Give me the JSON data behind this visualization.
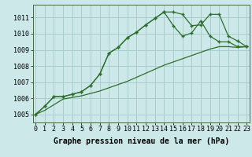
{
  "background_color": "#cce8e8",
  "grid_color": "#aacccc",
  "line_color": "#2d6e2d",
  "xlabel": "Graphe pression niveau de la mer (hPa)",
  "xlabel_fontsize": 7,
  "tick_fontsize": 6,
  "ylim": [
    1004.5,
    1011.8
  ],
  "xlim": [
    -0.3,
    23.3
  ],
  "yticks": [
    1005,
    1006,
    1007,
    1008,
    1009,
    1010,
    1011
  ],
  "xticks": [
    0,
    1,
    2,
    3,
    4,
    5,
    6,
    7,
    8,
    9,
    10,
    11,
    12,
    13,
    14,
    15,
    16,
    17,
    18,
    19,
    20,
    21,
    22,
    23
  ],
  "series1": [
    1005.0,
    1005.5,
    1006.1,
    1006.1,
    1006.25,
    1006.4,
    1006.8,
    1007.5,
    1008.8,
    1009.15,
    1009.75,
    1010.1,
    1010.55,
    1010.95,
    1011.35,
    1011.35,
    1011.2,
    1010.5,
    1010.55,
    1011.2,
    1011.2,
    1009.85,
    1009.55,
    1009.2
  ],
  "series2": [
    1005.0,
    1005.5,
    1006.1,
    1006.1,
    1006.25,
    1006.4,
    1006.8,
    1007.5,
    1008.8,
    1009.15,
    1009.75,
    1010.1,
    1010.55,
    1010.95,
    1011.35,
    1010.5,
    1009.85,
    1010.05,
    1010.8,
    1009.85,
    1009.5,
    1009.5,
    1009.2,
    1009.2
  ],
  "series3": [
    1005.0,
    1005.25,
    1005.6,
    1005.95,
    1006.05,
    1006.15,
    1006.3,
    1006.45,
    1006.65,
    1006.85,
    1007.05,
    1007.3,
    1007.55,
    1007.8,
    1008.05,
    1008.25,
    1008.45,
    1008.65,
    1008.85,
    1009.05,
    1009.2,
    1009.2,
    1009.15,
    1009.2
  ]
}
